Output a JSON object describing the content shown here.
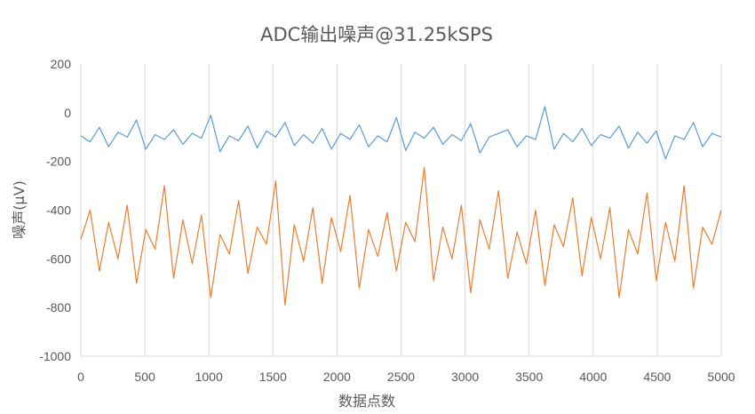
{
  "chart_data": {
    "type": "line",
    "title": "ADC输出噪声@31.25kSPS",
    "xlabel": "数据点数",
    "ylabel": "噪声(μV)",
    "xlim": [
      0,
      5000
    ],
    "ylim": [
      -1000,
      200
    ],
    "x_ticks": [
      "0",
      "500",
      "1000",
      "1500",
      "2000",
      "2500",
      "3000",
      "3500",
      "4000",
      "4500",
      "5000"
    ],
    "y_ticks": [
      "200",
      "0",
      "-200",
      "-400",
      "-600",
      "-800",
      "-1000"
    ],
    "grid": "vertical",
    "legend": "none",
    "series": [
      {
        "color": "#5b9bd5",
        "mean": -95,
        "min": -200,
        "max": 30,
        "values": [
          -95,
          -120,
          -60,
          -140,
          -80,
          -100,
          -30,
          -150,
          -90,
          -110,
          -70,
          -130,
          -85,
          -105,
          -10,
          -160,
          -95,
          -115,
          -55,
          -145,
          -75,
          -100,
          -40,
          -135,
          -90,
          -125,
          -65,
          -150,
          -85,
          -110,
          -50,
          -140,
          -95,
          -120,
          -20,
          -155,
          -80,
          -105,
          -60,
          -130,
          -90,
          -115,
          -45,
          -165,
          -100,
          -85,
          -70,
          -140,
          -95,
          -110,
          25,
          -150,
          -85,
          -120,
          -65,
          -135,
          -90,
          -105,
          -55,
          -145,
          -80,
          -125,
          -75,
          -190,
          -95,
          -110,
          -40,
          -140,
          -85,
          -100
        ]
      },
      {
        "color": "#ed7d31",
        "mean": -520,
        "min": -790,
        "max": -225,
        "values": [
          -520,
          -400,
          -650,
          -450,
          -600,
          -380,
          -700,
          -480,
          -560,
          -300,
          -680,
          -440,
          -620,
          -420,
          -760,
          -500,
          -580,
          -360,
          -660,
          -470,
          -540,
          -280,
          -790,
          -460,
          -610,
          -390,
          -700,
          -430,
          -570,
          -340,
          -720,
          -480,
          -590,
          -410,
          -650,
          -450,
          -530,
          -225,
          -690,
          -470,
          -600,
          -380,
          -740,
          -440,
          -560,
          -320,
          -680,
          -490,
          -620,
          -400,
          -710,
          -460,
          -550,
          -350,
          -670,
          -430,
          -600,
          -390,
          -760,
          -480,
          -580,
          -330,
          -690,
          -450,
          -610,
          -300,
          -720,
          -470,
          -540,
          -400
        ]
      }
    ]
  }
}
